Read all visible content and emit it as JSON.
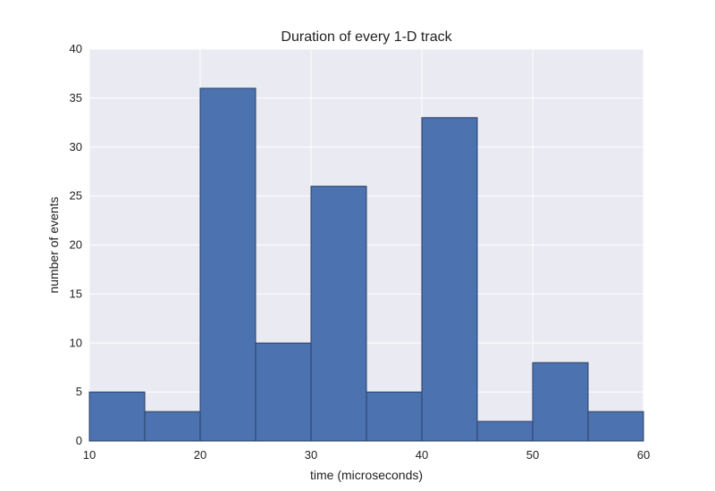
{
  "chart_data": {
    "type": "bar",
    "title": "Duration of every 1-D track",
    "xlabel": "time (microseconds)",
    "ylabel": "number of events",
    "xlim": [
      10,
      60
    ],
    "ylim": [
      0,
      40
    ],
    "xticks": [
      10,
      20,
      30,
      40,
      50,
      60
    ],
    "yticks": [
      0,
      5,
      10,
      15,
      20,
      25,
      30,
      35,
      40
    ],
    "bin_edges": [
      10,
      15,
      20,
      25,
      30,
      35,
      40,
      45,
      50,
      55,
      60
    ],
    "values": [
      5,
      3,
      36,
      10,
      26,
      5,
      33,
      2,
      8,
      3
    ],
    "grid": true,
    "colors": {
      "bar": "#4c72b0",
      "plot_background": "#eaeaf2",
      "grid": "#ffffff"
    }
  }
}
